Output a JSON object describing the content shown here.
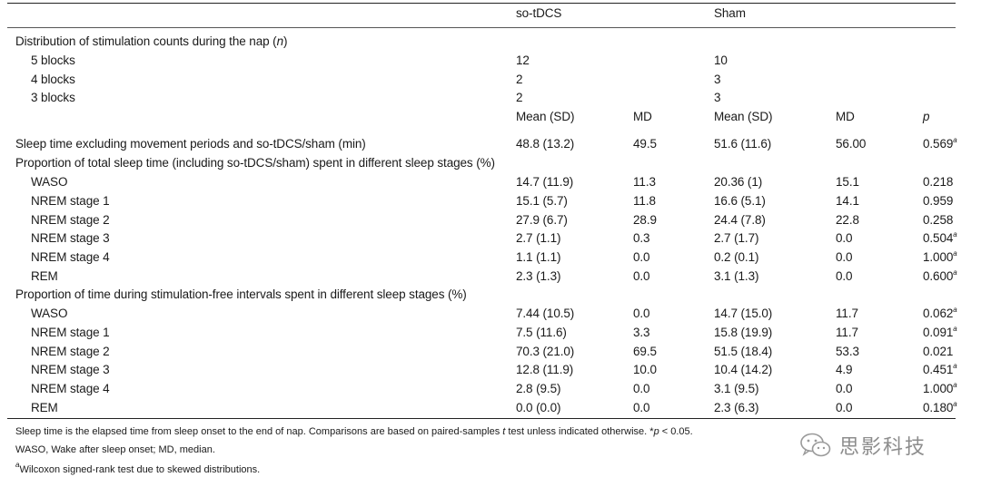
{
  "header": {
    "col_sotdcs": "so-tDCS",
    "col_sham": "Sham"
  },
  "distribution": {
    "title_prefix": "Distribution of stimulation counts during the nap (",
    "title_var": "n",
    "title_suffix": ")",
    "rows": [
      {
        "label": "5 blocks",
        "sotdcs": "12",
        "sham": "10"
      },
      {
        "label": "4 blocks",
        "sotdcs": "2",
        "sham": "3"
      },
      {
        "label": "3 blocks",
        "sotdcs": "2",
        "sham": "3"
      }
    ]
  },
  "subheader": {
    "mean_sd": "Mean (SD)",
    "md": "MD",
    "mean_sd2": "Mean (SD)",
    "md2": "MD",
    "p": "p"
  },
  "sleep_time": {
    "label": "Sleep time excluding movement periods and so-tDCS/sham (min)",
    "mean1": "48.8 (13.2)",
    "md1": "49.5",
    "mean2": "51.6 (11.6)",
    "md2": "56.00",
    "p": "0.569",
    "sup": "a"
  },
  "section1": {
    "title": "Proportion of total sleep time (including so-tDCS/sham) spent in different sleep stages (%)",
    "rows": [
      {
        "label": "WASO",
        "mean1": "14.7 (11.9)",
        "md1": "11.3",
        "mean2": "20.36 (1)",
        "md2": "15.1",
        "p": "0.218",
        "sup": ""
      },
      {
        "label": "NREM stage 1",
        "mean1": "15.1 (5.7)",
        "md1": "11.8",
        "mean2": "16.6 (5.1)",
        "md2": "14.1",
        "p": "0.959",
        "sup": ""
      },
      {
        "label": "NREM stage 2",
        "mean1": "27.9 (6.7)",
        "md1": "28.9",
        "mean2": "24.4 (7.8)",
        "md2": "22.8",
        "p": "0.258",
        "sup": ""
      },
      {
        "label": "NREM stage 3",
        "mean1": "2.7 (1.1)",
        "md1": "0.3",
        "mean2": "2.7 (1.7)",
        "md2": "0.0",
        "p": "0.504",
        "sup": "a"
      },
      {
        "label": "NREM stage 4",
        "mean1": "1.1 (1.1)",
        "md1": "0.0",
        "mean2": "0.2 (0.1)",
        "md2": "0.0",
        "p": "1.000",
        "sup": "a"
      },
      {
        "label": "REM",
        "mean1": "2.3 (1.3)",
        "md1": "0.0",
        "mean2": "3.1 (1.3)",
        "md2": "0.0",
        "p": "0.600",
        "sup": "a"
      }
    ]
  },
  "section2": {
    "title": "Proportion of time during stimulation-free intervals spent in different sleep stages (%)",
    "rows": [
      {
        "label": "WASO",
        "mean1": "7.44 (10.5)",
        "md1": "0.0",
        "mean2": "14.7 (15.0)",
        "md2": "11.7",
        "p": "0.062",
        "sup": "a"
      },
      {
        "label": "NREM stage 1",
        "mean1": "7.5 (11.6)",
        "md1": "3.3",
        "mean2": "15.8 (19.9)",
        "md2": "11.7",
        "p": "0.091",
        "sup": "a"
      },
      {
        "label": "NREM stage 2",
        "mean1": "70.3 (21.0)",
        "md1": "69.5",
        "mean2": "51.5 (18.4)",
        "md2": "53.3",
        "p": "0.021",
        "sup": ""
      },
      {
        "label": "NREM stage 3",
        "mean1": "12.8 (11.9)",
        "md1": "10.0",
        "mean2": "10.4 (14.2)",
        "md2": "4.9",
        "p": "0.451",
        "sup": "a"
      },
      {
        "label": "NREM stage 4",
        "mean1": "2.8 (9.5)",
        "md1": "0.0",
        "mean2": "3.1 (9.5)",
        "md2": "0.0",
        "p": "1.000",
        "sup": "a"
      },
      {
        "label": "REM",
        "mean1": "0.0 (0.0)",
        "md1": "0.0",
        "mean2": "2.3 (6.3)",
        "md2": "0.0",
        "p": "0.180",
        "sup": "a"
      }
    ]
  },
  "footnotes": {
    "line1_a": "Sleep time is the elapsed time from sleep onset to the end of nap. Comparisons are based on paired-samples ",
    "line1_t": "t",
    "line1_b": " test unless indicated otherwise. *",
    "line1_p": "p",
    "line1_c": " < 0.05.",
    "line2": "WASO, Wake after sleep onset; MD, median.",
    "line3_sup": "a",
    "line3": "Wilcoxon signed-rank test due to skewed distributions."
  },
  "watermark": {
    "text": "思影科技",
    "icon": "wechat-icon",
    "color": "#8d8d8d"
  }
}
